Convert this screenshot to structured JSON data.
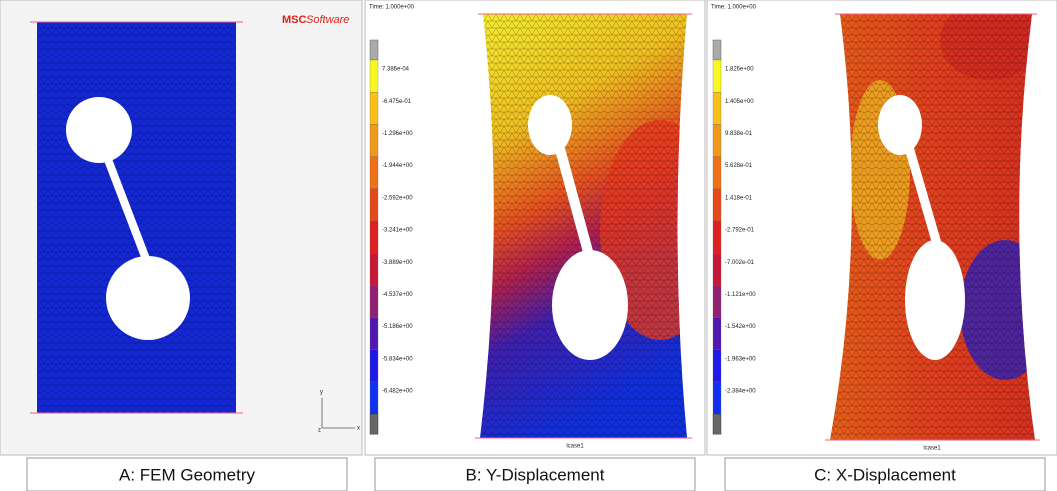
{
  "panels": [
    {
      "caption": "A: FEM Geometry",
      "logo": {
        "brand": "MSC",
        "suffix": "Software"
      },
      "triad": {
        "y": "y",
        "z": "z",
        "x": "x"
      }
    },
    {
      "caption": "B: Y-Displacement",
      "time": "Time: 1.000e+00",
      "load_case": "lcase1",
      "legend": [
        "7.386e-04",
        "-6.475e-01",
        "-1.296e+00",
        "-1.944e+00",
        "-2.592e+00",
        "-3.241e+00",
        "-3.889e+00",
        "-4.537e+00",
        "-5.186e+00",
        "-5.834e+00",
        "-6.482e+00"
      ]
    },
    {
      "caption": "C: X-Displacement",
      "time": "Time: 1.000e+00",
      "load_case": "lcase1",
      "legend": [
        "1.826e+00",
        "1.405e+00",
        "9.838e-01",
        "5.628e-01",
        "1.418e-01",
        "-2.792e-01",
        "-7.002e-01",
        "-1.121e+00",
        "-1.542e+00",
        "-1.963e+00",
        "-2.384e+00"
      ]
    }
  ]
}
